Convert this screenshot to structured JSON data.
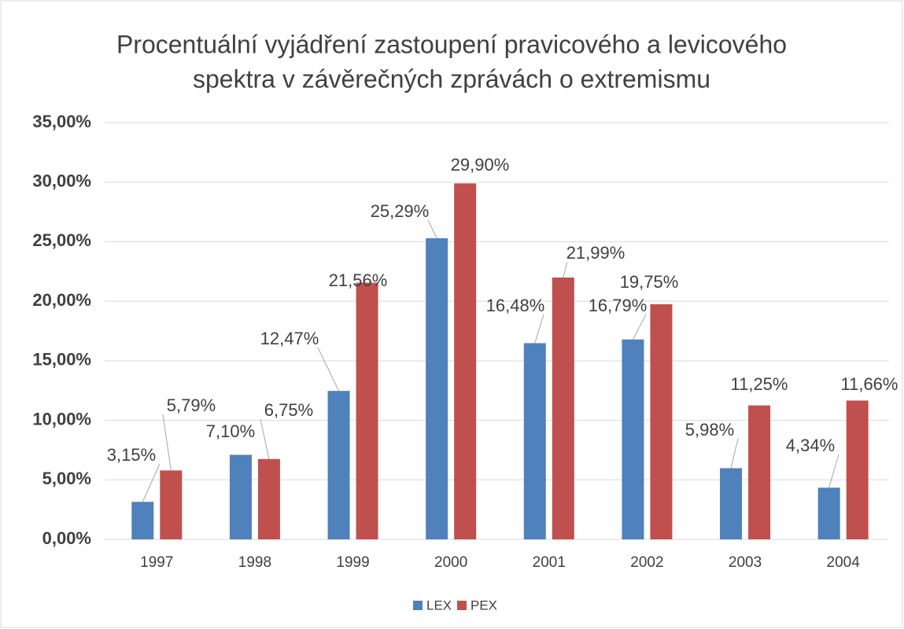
{
  "chart_data": {
    "type": "bar",
    "title": [
      "Procentuální vyjádření zastoupení pravicového a levicového",
      "spektra v závěrečných zprávách o extremismu"
    ],
    "categories": [
      "1997",
      "1998",
      "1999",
      "2000",
      "2001",
      "2002",
      "2003",
      "2004"
    ],
    "series": [
      {
        "name": "LEX",
        "color": "#4f81bd",
        "values": [
          3.15,
          7.1,
          12.47,
          25.29,
          16.48,
          16.79,
          5.98,
          4.34
        ],
        "value_labels": [
          "3,15%",
          "7,10%",
          "12,47%",
          "25,29%",
          "16,48%",
          "16,79%",
          "5,98%",
          "4,34%"
        ]
      },
      {
        "name": "PEX",
        "color": "#c0504d",
        "values": [
          5.79,
          6.75,
          21.56,
          29.9,
          21.99,
          19.75,
          11.25,
          11.66
        ],
        "value_labels": [
          "5,79%",
          "6,75%",
          "21,56%",
          "29,90%",
          "21,99%",
          "19,75%",
          "11,25%",
          "11,66%"
        ]
      }
    ],
    "ylim": [
      0,
      35
    ],
    "yticks": [
      {
        "value": 0,
        "label": "0,00%"
      },
      {
        "value": 5,
        "label": "5,00%"
      },
      {
        "value": 10,
        "label": "10,00%"
      },
      {
        "value": 15,
        "label": "15,00%"
      },
      {
        "value": 20,
        "label": "20,00%"
      },
      {
        "value": 25,
        "label": "25,00%"
      },
      {
        "value": 30,
        "label": "30,00%"
      },
      {
        "value": 35,
        "label": "35,00%"
      }
    ],
    "grid": true,
    "legend": "bottom"
  }
}
